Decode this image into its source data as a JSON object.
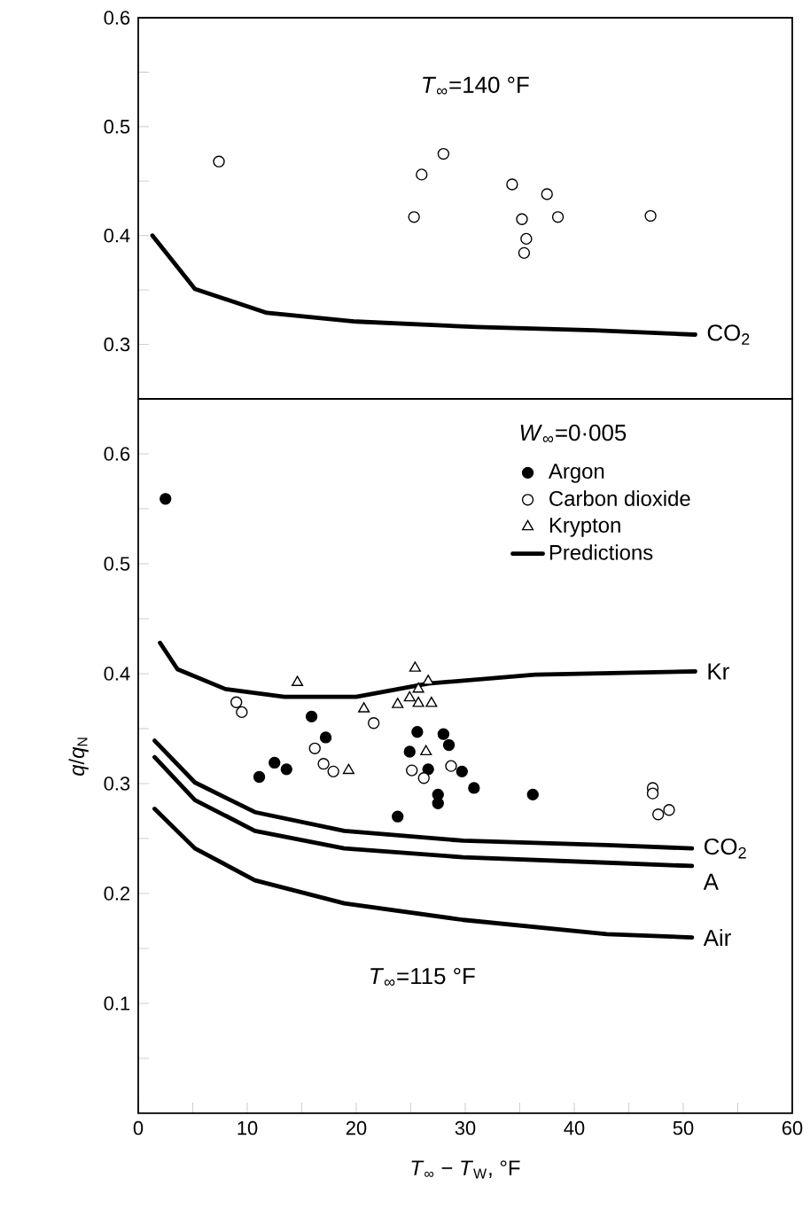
{
  "chart_data": [
    {
      "type": "scatter",
      "annotations": [
        "*T*$_{∞}$=140 °F",
        "CO$_{2}$"
      ],
      "xlim": [
        0,
        60
      ],
      "ylim": [
        0.25,
        0.6
      ],
      "tick_labels": "y",
      "yticks": [
        0.3,
        {
          "value": 0.35,
          "label": null
        },
        0.4,
        {
          "value": 0.45,
          "label": null
        },
        0.5,
        {
          "value": 0.55,
          "label": null
        },
        0.6
      ],
      "series": [
        {
          "color": "#000000",
          "marker": "circle",
          "x": [
            7.4,
            25.3,
            26.0,
            28.0,
            34.3,
            35.2,
            35.6,
            35.4,
            37.5,
            38.5,
            47.0
          ],
          "values": [
            0.468,
            0.417,
            0.456,
            0.475,
            0.447,
            0.415,
            0.397,
            0.384,
            0.438,
            0.417,
            0.418
          ]
        },
        {
          "type": "line",
          "color": "#000000",
          "line_style": "solid",
          "marker": "none",
          "x": [
            1.3,
            5.2,
            11.8,
            20,
            31,
            41.8,
            51.1
          ],
          "values": [
            0.4,
            0.351,
            0.329,
            0.321,
            0.316,
            0.313,
            0.309
          ]
        }
      ]
    },
    {
      "type": "scatter",
      "xlabel": "*T*$_{∞}$ − *T*$_{W}$,   °F",
      "ylabel": "*q*/*q*$_{N}$",
      "legend": "top right",
      "annotations": [
        "*W*$_{∞}$=0·005",
        "*T*$_{∞}$=115 °F",
        "Kr",
        "CO$_{2}$",
        "A",
        "Air"
      ],
      "xlim": [
        0,
        60
      ],
      "ylim": [
        0,
        0.65
      ],
      "xticks": [
        0,
        {
          "value": 5,
          "label": null
        },
        10,
        {
          "value": 15,
          "label": null
        },
        20,
        {
          "value": 25,
          "label": null
        },
        30,
        {
          "value": 35,
          "label": null
        },
        40,
        {
          "value": 45,
          "label": null
        },
        50,
        {
          "value": 55,
          "label": null
        },
        60
      ],
      "yticks": [
        {
          "value": 0.05,
          "label": null
        },
        0.1,
        {
          "value": 0.15,
          "label": null
        },
        0.2,
        {
          "value": 0.25,
          "label": null
        },
        0.3,
        {
          "value": 0.35,
          "label": null
        },
        0.4,
        {
          "value": 0.45,
          "label": null
        },
        0.5,
        {
          "value": 0.55,
          "label": null
        },
        0.6
      ],
      "series": [
        {
          "name": "Argon",
          "color": "#000000",
          "marker": "filled circle",
          "x": [
            2.5,
            15.9,
            17.2,
            11.1,
            12.5,
            13.6,
            25.6,
            24.9,
            26.6,
            23.8,
            27.5,
            27.5,
            28.0,
            28.5,
            29.7,
            30.8,
            36.2
          ],
          "values": [
            0.559,
            0.361,
            0.342,
            0.306,
            0.319,
            0.313,
            0.347,
            0.329,
            0.313,
            0.27,
            0.29,
            0.282,
            0.345,
            0.335,
            0.311,
            0.296,
            0.29
          ]
        },
        {
          "name": "Carbon dioxide",
          "color": "#000000",
          "marker": "circle",
          "x": [
            9.0,
            9.5,
            21.6,
            16.2,
            17.0,
            17.9,
            25.1,
            26.2,
            28.7,
            47.2,
            47.2,
            47.7,
            48.7
          ],
          "values": [
            0.374,
            0.365,
            0.355,
            0.332,
            0.318,
            0.311,
            0.312,
            0.305,
            0.316,
            0.296,
            0.291,
            0.272,
            0.276
          ]
        },
        {
          "name": "Krypton",
          "color": "#000000",
          "marker": "triangle",
          "x": [
            14.6,
            20.7,
            19.3,
            23.8,
            24.9,
            25.4,
            25.7,
            26.4,
            26.6,
            26.9,
            25.7
          ],
          "values": [
            0.392,
            0.368,
            0.312,
            0.372,
            0.378,
            0.405,
            0.373,
            0.329,
            0.393,
            0.373,
            0.386
          ]
        },
        {
          "type": "line",
          "name": "Predictions",
          "color": "#000000",
          "line_style": "solid",
          "marker": "none",
          "x": [
            2,
            3.6,
            8,
            13.4,
            20,
            26.6,
            36.4,
            51.1
          ],
          "values": [
            0.428,
            0.404,
            0.386,
            0.379,
            0.379,
            0.391,
            0.399,
            0.402
          ]
        },
        {
          "type": "line",
          "color": "#000000",
          "line_style": "solid",
          "marker": "none",
          "x": [
            1.5,
            5.2,
            10.7,
            18.9,
            29.8,
            43,
            50.8
          ],
          "values": [
            0.339,
            0.301,
            0.274,
            0.257,
            0.248,
            0.244,
            0.241
          ]
        },
        {
          "type": "line",
          "color": "#000000",
          "line_style": "solid",
          "marker": "none",
          "x": [
            1.5,
            5.2,
            10.7,
            18.9,
            29.8,
            43,
            50.8
          ],
          "values": [
            0.324,
            0.285,
            0.257,
            0.241,
            0.233,
            0.228,
            0.225
          ]
        },
        {
          "type": "line",
          "color": "#000000",
          "line_style": "solid",
          "marker": "none",
          "x": [
            1.5,
            5.2,
            10.7,
            18.9,
            29.8,
            43,
            50.8
          ],
          "values": [
            0.277,
            0.241,
            0.212,
            0.191,
            0.176,
            0.163,
            0.16
          ]
        }
      ]
    }
  ]
}
